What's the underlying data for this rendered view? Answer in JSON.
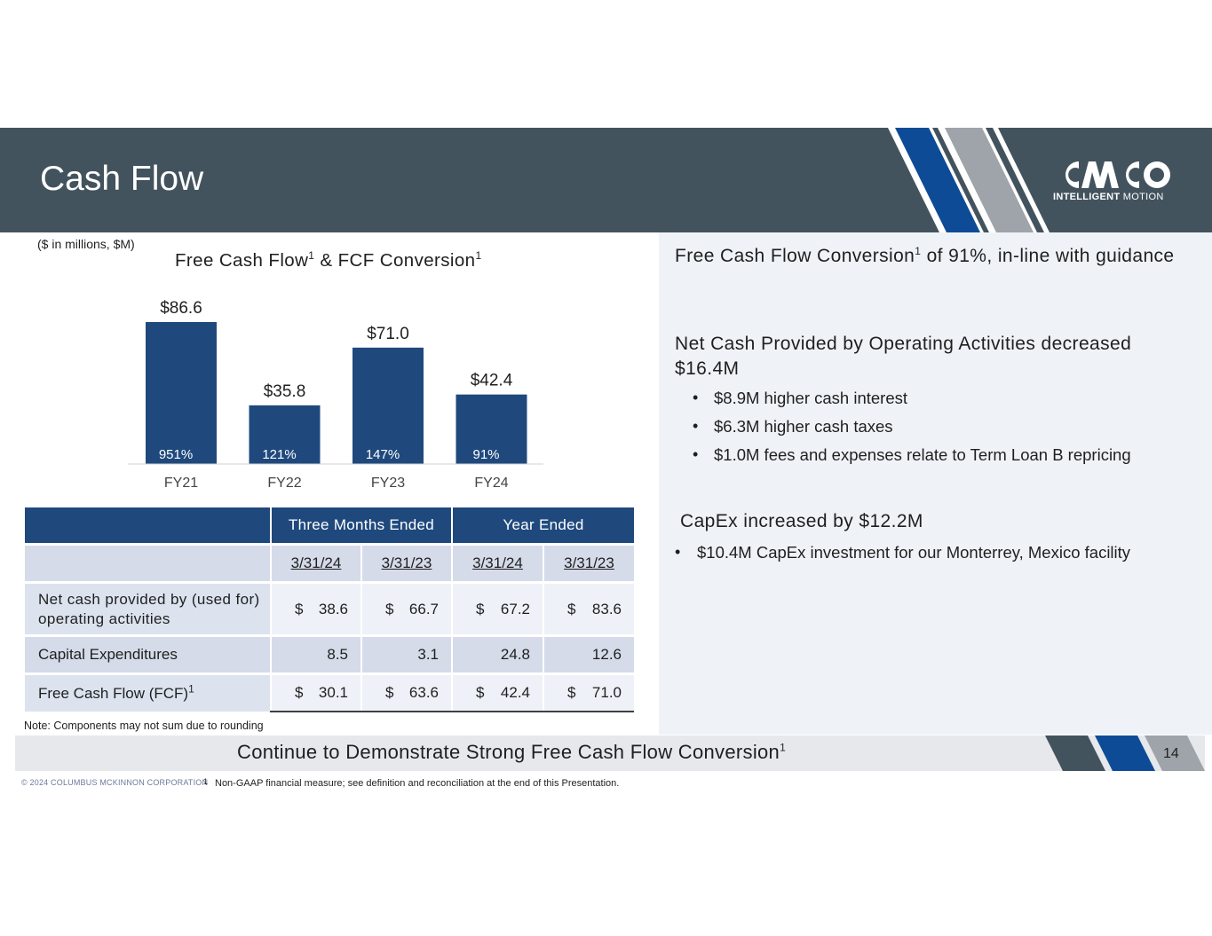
{
  "header": {
    "title": "Cash Flow",
    "logo_text": "CMCO",
    "logo_sub_bold": "INTELLIGENT",
    "logo_sub_rest": " MOTION",
    "bg_color": "#43535e",
    "stripe_colors": [
      "#0e4b96",
      "#9ea4a9"
    ]
  },
  "units_note": "($ in millions, $M)",
  "chart_title": {
    "part1": "Free Cash Flow",
    "sup1": "1",
    "part2": " & FCF Conversion",
    "sup2": "1"
  },
  "chart_data": {
    "type": "bar",
    "title": "Free Cash Flow1 & FCF Conversion1",
    "categories": [
      "FY21",
      "FY22",
      "FY23",
      "FY24"
    ],
    "values": [
      86.6,
      35.8,
      71.0,
      42.4
    ],
    "value_labels": [
      "$86.6",
      "$35.8",
      "$71.0",
      "$42.4"
    ],
    "conversion_labels": [
      "951%",
      "121%",
      "147%",
      "91%"
    ],
    "ylim": [
      0,
      86.6
    ],
    "bar_color": "#1f497d",
    "grid": false,
    "legend": "none"
  },
  "table": {
    "group_headers": [
      "Three Months Ended",
      "Year Ended"
    ],
    "dates": [
      "3/31/24",
      "3/31/23",
      "3/31/24",
      "3/31/23"
    ],
    "rows": [
      {
        "label": "Net cash provided by (used for) operating activities",
        "values": [
          "38.6",
          "66.7",
          "67.2",
          "83.6"
        ],
        "currency": "$"
      },
      {
        "label": "Capital Expenditures",
        "values": [
          "8.5",
          "3.1",
          "24.8",
          "12.6"
        ],
        "currency": ""
      },
      {
        "label": "Free Cash Flow (FCF)",
        "label_sup": "1",
        "values": [
          "30.1",
          "63.6",
          "42.4",
          "71.0"
        ],
        "currency": "$"
      }
    ]
  },
  "note": "Note: Components may not sum due to rounding",
  "right_panel": {
    "heading1": "Free Cash Flow Conversion",
    "heading1_sup": "1",
    "heading1_rest": " of 91%, in-line with guidance",
    "heading2": "Net Cash Provided by Operating Activities decreased $16.4M",
    "bullets2": [
      "$8.9M higher cash interest",
      "$6.3M higher cash taxes",
      "$1.0M fees and expenses relate to Term Loan B repricing"
    ],
    "heading3": "CapEx increased by $12.2M",
    "bullets3": [
      "$10.4M CapEx investment for our Monterrey, Mexico facility"
    ],
    "bullet_char": "•"
  },
  "bottom_bar": {
    "text": "Continue to Demonstrate Strong Free Cash Flow Conversion",
    "text_sup": "1",
    "page_number": "14"
  },
  "footer": {
    "copyright": "© 2024 COLUMBUS MCKINNON CORPORATION",
    "footnote_number": "1",
    "footnote": "Non-GAAP financial measure; see definition and reconciliation at the end of this Presentation."
  }
}
